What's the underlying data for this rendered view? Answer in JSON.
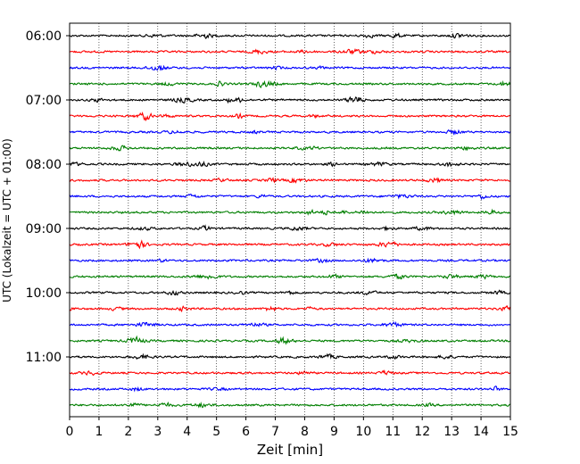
{
  "chart_data": {
    "type": "line",
    "title": "",
    "xlabel": "Zeit  [min]",
    "ylabel": "UTC (Lokalzeit = UTC + 01:00)",
    "xlim": [
      0,
      15
    ],
    "xticks": [
      0,
      1,
      2,
      3,
      4,
      5,
      6,
      7,
      8,
      9,
      10,
      11,
      12,
      13,
      14,
      15
    ],
    "xtick_labels": [
      "0",
      "1",
      "2",
      "3",
      "4",
      "5",
      "6",
      "7",
      "8",
      "9",
      "10",
      "11",
      "12",
      "13",
      "14",
      "15"
    ],
    "yticks": [
      "06:00",
      "07:00",
      "08:00",
      "09:00",
      "10:00",
      "11:00"
    ],
    "grid": "vertical dotted at each minute",
    "trace_interval_minutes": 15,
    "first_trace": "06:00",
    "trace_count": 24,
    "trace_colors": [
      "#000000",
      "#ff0000",
      "#0000ff",
      "#007f00"
    ],
    "signal": "seismic waveform, approximately constant low-amplitude noise with isolated short bursts"
  }
}
